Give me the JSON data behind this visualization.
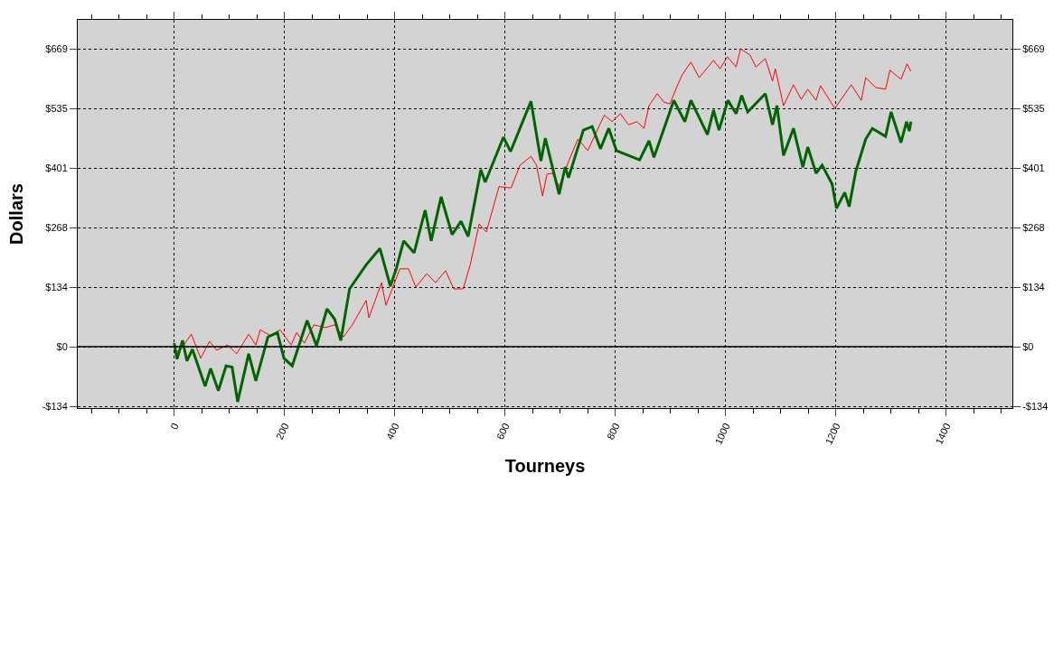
{
  "chart_data": {
    "type": "line",
    "xlabel": "Tourneys",
    "ylabel": "Dollars",
    "xlim": [
      -175,
      1520
    ],
    "xticks": [
      0,
      200,
      400,
      600,
      800,
      1000,
      1200,
      1400
    ],
    "ylim": [
      -138,
      735
    ],
    "yticks": [
      {
        "value": -134,
        "label": "-$134"
      },
      {
        "value": 0,
        "label": "$0"
      },
      {
        "value": 134,
        "label": "$134"
      },
      {
        "value": 268,
        "label": "$268"
      },
      {
        "value": 401,
        "label": "$401"
      },
      {
        "value": 535,
        "label": "$535"
      },
      {
        "value": 669,
        "label": "$669"
      }
    ],
    "y2lim": [
      -138,
      735
    ],
    "y2ticks": [
      {
        "value": -134,
        "label": "-$134"
      },
      {
        "value": 0,
        "label": "$0"
      },
      {
        "value": 134,
        "label": "$134"
      },
      {
        "value": 268,
        "label": "$268"
      },
      {
        "value": 401,
        "label": "$401"
      },
      {
        "value": 535,
        "label": "$535"
      },
      {
        "value": 669,
        "label": "$669"
      }
    ],
    "grid": true,
    "line_style": "solid",
    "marker": "none",
    "ref_lines": [
      {
        "axis": "y",
        "value": 0,
        "label": null,
        "color": "#000000",
        "line_style": "solid"
      }
    ],
    "series": [
      {
        "color": "#ff0000",
        "x": [
          0,
          8,
          31,
          48,
          64,
          77,
          97,
          113,
          135,
          148,
          156,
          176,
          192,
          212,
          222,
          236,
          253,
          274,
          291,
          307,
          323,
          348,
          353,
          376,
          384,
          409,
          425,
          438,
          458,
          474,
          492,
          507,
          524,
          537,
          553,
          566,
          589,
          611,
          627,
          647,
          657,
          668,
          676,
          686,
          698,
          715,
          732,
          750,
          780,
          794,
          809,
          824,
          839,
          852,
          861,
          876,
          888,
          899,
          911,
          921,
          937,
          952,
          978,
          990,
          1003,
          1019,
          1027,
          1044,
          1055,
          1072,
          1085,
          1090,
          1105,
          1123,
          1137,
          1149,
          1164,
          1172,
          1198,
          1228,
          1246,
          1254,
          1272,
          1290,
          1298,
          1318,
          1329,
          1336
        ],
        "values": [
          -6,
          -12,
          28,
          -26,
          12,
          -8,
          4,
          -16,
          28,
          4,
          38,
          24,
          38,
          4,
          32,
          8,
          49,
          43,
          49,
          22,
          49,
          104,
          65,
          144,
          93,
          175,
          175,
          134,
          164,
          144,
          171,
          130,
          130,
          185,
          276,
          258,
          360,
          357,
          408,
          428,
          408,
          339,
          388,
          390,
          360,
          416,
          467,
          441,
          521,
          506,
          524,
          499,
          506,
          491,
          542,
          569,
          550,
          546,
          583,
          611,
          640,
          605,
          644,
          625,
          652,
          629,
          670,
          656,
          629,
          648,
          597,
          625,
          542,
          589,
          556,
          579,
          554,
          587,
          536,
          589,
          554,
          605,
          583,
          579,
          622,
          601,
          636,
          619
        ]
      },
      {
        "color": "#006400",
        "x": [
          0,
          5,
          15,
          23,
          33,
          56,
          66,
          80,
          94,
          105,
          115,
          135,
          148,
          170,
          187,
          199,
          214,
          241,
          258,
          277,
          291,
          302,
          318,
          348,
          373,
          392,
          403,
          416,
          435,
          455,
          466,
          484,
          504,
          520,
          533,
          556,
          564,
          597,
          610,
          647,
          665,
          673,
          698,
          709,
          715,
          742,
          758,
          773,
          788,
          802,
          844,
          861,
          870,
          906,
          926,
          937,
          967,
          978,
          988,
          1004,
          1019,
          1029,
          1040,
          1072,
          1085,
          1093,
          1105,
          1123,
          1140,
          1149,
          1164,
          1175,
          1193,
          1201,
          1216,
          1224,
          1236,
          1254,
          1266,
          1290,
          1300,
          1318,
          1328,
          1333,
          1336
        ],
        "values": [
          8,
          -28,
          14,
          -32,
          -6,
          -89,
          -49,
          -99,
          -43,
          -46,
          -124,
          -16,
          -77,
          22,
          32,
          -26,
          -43,
          59,
          2,
          85,
          62,
          14,
          130,
          184,
          221,
          136,
          177,
          238,
          211,
          307,
          238,
          337,
          252,
          282,
          248,
          398,
          370,
          471,
          439,
          552,
          418,
          469,
          343,
          404,
          380,
          487,
          495,
          445,
          491,
          441,
          420,
          463,
          426,
          554,
          506,
          554,
          477,
          532,
          487,
          554,
          524,
          565,
          528,
          569,
          499,
          542,
          430,
          491,
          404,
          449,
          390,
          408,
          366,
          311,
          347,
          315,
          394,
          467,
          491,
          473,
          528,
          459,
          506,
          485,
          506
        ]
      }
    ]
  }
}
